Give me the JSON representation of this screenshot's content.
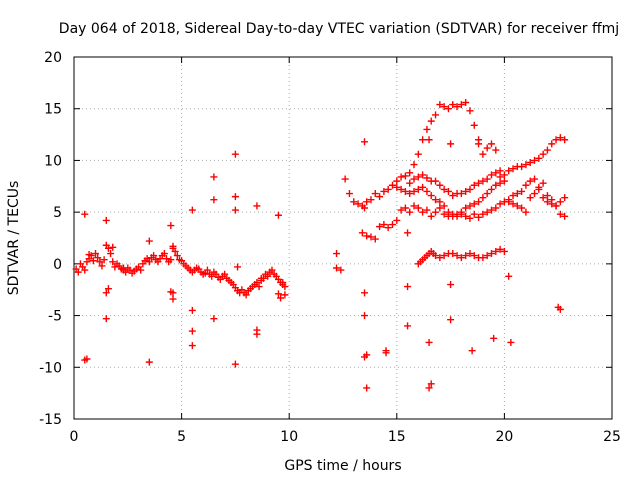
{
  "chart_data": {
    "type": "scatter",
    "title": "Day 064 of 2018, Sidereal Day-to-day VTEC variation (SDTVAR) for receiver ffmj",
    "xlabel": "GPS time / hours",
    "ylabel": "SDTVAR / TECUs",
    "xlim": [
      0,
      25
    ],
    "ylim": [
      -15,
      20
    ],
    "xticks": [
      0,
      5,
      10,
      15,
      20,
      25
    ],
    "yticks": [
      -15,
      -10,
      -5,
      0,
      5,
      10,
      15,
      20
    ],
    "grid": true,
    "marker": "+",
    "color": "#ff0000",
    "series": [
      {
        "name": "SDTVAR",
        "x": [
          0.1,
          0.2,
          0.3,
          0.4,
          0.5,
          0.6,
          0.7,
          0.8,
          0.9,
          1.0,
          1.1,
          1.2,
          1.3,
          1.4,
          1.5,
          1.6,
          1.7,
          1.8,
          1.9,
          2.0,
          2.1,
          2.2,
          2.3,
          2.4,
          2.5,
          2.6,
          2.7,
          2.8,
          2.9,
          3.0,
          3.1,
          3.2,
          3.3,
          3.4,
          3.5,
          3.6,
          3.7,
          3.8,
          3.9,
          4.0,
          4.1,
          4.2,
          4.3,
          4.4,
          4.5,
          4.6,
          4.7,
          4.8,
          4.9,
          5.0,
          5.1,
          5.2,
          5.3,
          5.4,
          5.5,
          5.6,
          5.7,
          5.8,
          5.9,
          6.0,
          6.1,
          6.2,
          6.3,
          6.4,
          6.5,
          6.6,
          6.7,
          6.8,
          6.9,
          7.0,
          7.1,
          7.2,
          7.3,
          7.4,
          7.5,
          7.6,
          7.7,
          7.8,
          7.9,
          8.0,
          8.1,
          8.2,
          8.3,
          8.4,
          8.5,
          8.6,
          8.7,
          8.8,
          8.9,
          9.0,
          9.1,
          9.2,
          9.3,
          9.4,
          9.5,
          9.6,
          9.7,
          9.8,
          0.5,
          0.5,
          1.5,
          1.5,
          1.5,
          3.5,
          3.5,
          4.5,
          4.5,
          4.6,
          4.6,
          5.5,
          5.5,
          5.5,
          5.5,
          6.5,
          6.5,
          6.5,
          7.5,
          7.5,
          7.5,
          7.5,
          8.5,
          8.5,
          8.5,
          9.5,
          9.5,
          9.6,
          9.8,
          0.6,
          0.7,
          1.6,
          1.8,
          2.3,
          4.6,
          5.4,
          7.6,
          8.7,
          9.7,
          12.2,
          12.2,
          12.4,
          12.6,
          12.8,
          13.0,
          13.2,
          13.4,
          13.5,
          13.6,
          13.8,
          14.0,
          14.2,
          14.4,
          14.6,
          14.8,
          15.0,
          15.2,
          15.4,
          15.6,
          15.8,
          16.0,
          16.2,
          16.4,
          16.6,
          16.8,
          17.0,
          17.2,
          17.4,
          17.6,
          17.8,
          18.0,
          18.2,
          18.4,
          18.6,
          18.8,
          19.0,
          19.2,
          19.4,
          19.6,
          19.8,
          20.0,
          20.2,
          20.4,
          20.6,
          20.8,
          21.0,
          21.2,
          21.4,
          21.6,
          21.8,
          22.0,
          22.2,
          22.4,
          22.6,
          22.8,
          13.5,
          13.5,
          13.5,
          13.5,
          13.6,
          13.6,
          14.5,
          14.5,
          15.5,
          15.5,
          15.5,
          16.5,
          16.5,
          16.5,
          16.6,
          17.5,
          17.5,
          17.5,
          18.5,
          18.8,
          19.5,
          20.2,
          20.3,
          22.5,
          22.6,
          15.6,
          15.8,
          16.0,
          16.2,
          16.4,
          16.6,
          16.8,
          17.0,
          17.2,
          17.4,
          17.6,
          17.8,
          18.0,
          18.2,
          18.4,
          18.6,
          18.8,
          19.0,
          19.2,
          19.4,
          19.6,
          19.8,
          13.4,
          13.6,
          13.8,
          14.0,
          14.2,
          14.4,
          14.6,
          14.8,
          15.0,
          15.2,
          15.4,
          15.6,
          15.8,
          16.0,
          16.2,
          16.4,
          16.6,
          16.8,
          17.0,
          17.2,
          17.4,
          17.6,
          17.8,
          18.0,
          18.2,
          18.4,
          18.6,
          18.8,
          19.0,
          19.2,
          19.4,
          19.6,
          19.8,
          20.0,
          20.2,
          20.4,
          20.6,
          20.8,
          21.0,
          21.2,
          21.4,
          21.6,
          21.8,
          22.0,
          22.2,
          22.4,
          22.6,
          22.8,
          16.0,
          16.1,
          16.2,
          16.3,
          16.4,
          16.5,
          16.6,
          16.7,
          16.8,
          17.0,
          17.2,
          17.4,
          17.6,
          17.8,
          18.0,
          18.2,
          18.4,
          18.6,
          18.8,
          19.0,
          19.2,
          19.4,
          19.6,
          19.8,
          20.0,
          15.0,
          15.2,
          15.4,
          15.6,
          15.8,
          16.0,
          16.2,
          16.4,
          16.6,
          16.8,
          17.0,
          17.2,
          17.4,
          17.6,
          17.8,
          18.0,
          18.2,
          18.4,
          18.6,
          18.8,
          19.0,
          19.2,
          19.4,
          19.6,
          19.8,
          20.0,
          20.2,
          20.4,
          20.6,
          20.8,
          21.0,
          21.2,
          21.4,
          21.6,
          21.8,
          22.0,
          22.2,
          22.4,
          22.6,
          22.8
        ],
        "y": [
          -0.5,
          -0.8,
          0.0,
          -0.3,
          -0.6,
          0.2,
          0.5,
          0.8,
          0.3,
          1.0,
          0.6,
          0.2,
          -0.2,
          0.4,
          1.8,
          1.5,
          1.0,
          0.2,
          -0.3,
          0.0,
          -0.2,
          -0.5,
          -0.6,
          -0.8,
          -0.4,
          -0.6,
          -0.9,
          -0.7,
          -0.5,
          -0.3,
          -0.6,
          0.0,
          0.3,
          0.5,
          0.2,
          0.6,
          0.8,
          0.4,
          0.2,
          0.5,
          0.8,
          1.0,
          0.5,
          0.2,
          0.4,
          1.5,
          1.2,
          0.8,
          0.4,
          0.3,
          0.0,
          -0.2,
          -0.4,
          -0.6,
          -0.8,
          -0.6,
          -0.4,
          -0.5,
          -0.8,
          -1.0,
          -0.9,
          -0.6,
          -1.0,
          -1.2,
          -0.8,
          -1.0,
          -1.3,
          -1.5,
          -1.2,
          -1.0,
          -1.4,
          -1.6,
          -1.8,
          -2.0,
          -2.3,
          -2.6,
          -2.8,
          -2.5,
          -2.8,
          -3.0,
          -2.6,
          -2.4,
          -2.2,
          -2.0,
          -1.8,
          -2.2,
          -1.6,
          -1.4,
          -1.0,
          -1.2,
          -0.8,
          -0.6,
          -1.0,
          -1.2,
          -1.5,
          -1.8,
          -2.0,
          -2.2,
          4.8,
          -9.3,
          4.2,
          -2.8,
          -5.3,
          2.2,
          -9.5,
          3.7,
          -2.7,
          -3.4,
          -2.8,
          5.2,
          -4.5,
          -6.5,
          -7.9,
          8.4,
          6.2,
          -5.3,
          10.6,
          6.5,
          5.2,
          -9.7,
          5.6,
          -6.4,
          -6.8,
          4.7,
          -2.9,
          -3.3,
          -3.0,
          -9.2,
          0.9,
          -2.4,
          1.6,
          -0.4,
          1.7,
          -0.6,
          -0.3,
          -1.4,
          -1.8,
          1.0,
          -0.4,
          -0.6,
          8.2,
          6.8,
          6.0,
          5.8,
          5.6,
          5.4,
          6.0,
          6.2,
          6.8,
          6.5,
          7.0,
          7.2,
          7.6,
          8.0,
          8.4,
          8.5,
          8.8,
          9.6,
          10.6,
          12.0,
          13.0,
          13.8,
          14.4,
          15.4,
          15.2,
          15.0,
          15.4,
          15.2,
          15.4,
          15.6,
          14.8,
          13.4,
          12.0,
          10.6,
          11.2,
          11.6,
          11.0,
          8.4,
          8.6,
          9.0,
          9.2,
          9.4,
          9.4,
          9.6,
          9.8,
          10.0,
          10.2,
          10.6,
          11.0,
          11.6,
          12.0,
          12.2,
          12.0,
          11.8,
          -2.8,
          -5.0,
          -9.0,
          -12.0,
          -8.8,
          -8.6,
          -8.4,
          3.0,
          -2.2,
          -6.0,
          12.0,
          -7.6,
          -12.0,
          -11.6,
          11.6,
          -5.4,
          -2.0,
          -8.4,
          11.6,
          -7.2,
          -1.2,
          -7.6,
          -4.2,
          -4.4,
          7.8,
          8.2,
          8.4,
          8.6,
          8.3,
          8.0,
          8.0,
          7.6,
          7.2,
          7.0,
          6.6,
          6.8,
          6.8,
          7.0,
          7.2,
          7.6,
          7.8,
          8.0,
          8.2,
          8.6,
          8.8,
          9.0,
          3.0,
          2.7,
          2.6,
          2.4,
          3.6,
          3.8,
          3.5,
          3.8,
          4.2,
          5.2,
          5.4,
          5.0,
          5.6,
          5.4,
          5.0,
          5.2,
          4.6,
          5.0,
          5.4,
          4.8,
          4.6,
          4.8,
          4.6,
          4.8,
          4.6,
          4.4,
          4.8,
          4.5,
          4.8,
          5.0,
          5.2,
          5.4,
          5.8,
          6.0,
          6.2,
          6.6,
          6.8,
          7.0,
          7.6,
          8.0,
          8.2,
          7.2,
          6.4,
          6.0,
          5.8,
          5.6,
          6.0,
          6.4,
          0.0,
          0.2,
          0.4,
          0.6,
          0.8,
          1.0,
          1.2,
          1.0,
          0.8,
          0.6,
          0.8,
          1.0,
          1.0,
          0.8,
          0.6,
          0.8,
          1.0,
          0.8,
          0.6,
          0.6,
          0.8,
          1.0,
          1.2,
          1.4,
          1.2,
          7.4,
          7.2,
          7.0,
          6.8,
          7.0,
          7.2,
          7.4,
          7.0,
          6.6,
          6.2,
          6.0,
          5.6,
          5.0,
          4.6,
          4.8,
          5.0,
          5.4,
          5.6,
          5.8,
          6.0,
          6.4,
          6.8,
          7.2,
          7.6,
          7.8,
          8.0,
          6.0,
          5.8,
          5.6,
          5.4,
          5.0,
          6.4,
          6.8,
          7.4,
          7.8,
          6.6,
          6.2,
          5.6,
          4.8,
          4.6
        ]
      }
    ]
  }
}
